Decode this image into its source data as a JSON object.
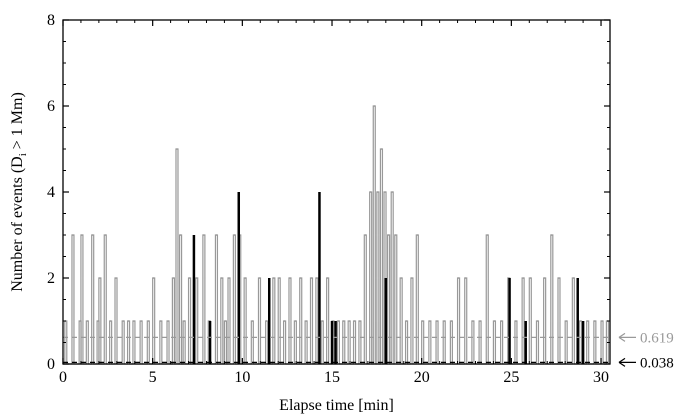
{
  "chart_data": {
    "type": "line",
    "title": "",
    "xlabel": "Elapse time [min]",
    "ylabel_main": "Number of events (D",
    "ylabel_sub": "i",
    "ylabel_tail": " > 1 Mm)",
    "xlim": [
      0,
      30.5
    ],
    "ylim": [
      0,
      8
    ],
    "xticks": [
      0,
      5,
      10,
      15,
      20,
      25,
      30
    ],
    "yticks": [
      0,
      2,
      4,
      6,
      8
    ],
    "grid": false,
    "legend": "none",
    "colors": {
      "gray": "#999999",
      "black": "#000000"
    },
    "series": [
      {
        "style": "gray-line",
        "x": [
          0.1,
          0.5,
          0.9,
          1.0,
          1.3,
          1.6,
          1.9,
          2.0,
          2.3,
          2.6,
          2.9,
          3.3,
          3.6,
          3.9,
          4.3,
          4.7,
          5.0,
          5.4,
          5.8,
          6.1,
          6.3,
          6.5,
          6.7,
          7.0,
          7.4,
          7.8,
          8.1,
          8.5,
          8.8,
          9.0,
          9.2,
          9.5,
          9.8,
          10.1,
          10.5,
          10.9,
          11.3,
          11.7,
          12.0,
          12.3,
          12.6,
          12.9,
          13.2,
          13.5,
          13.8,
          14.1,
          14.4,
          14.7,
          15.0,
          15.3,
          15.6,
          15.9,
          16.2,
          16.5,
          16.8,
          17.1,
          17.3,
          17.5,
          17.7,
          17.9,
          18.1,
          18.3,
          18.5,
          18.8,
          19.1,
          19.4,
          19.7,
          20.0,
          20.4,
          20.8,
          21.2,
          21.6,
          22.0,
          22.4,
          22.8,
          23.2,
          23.6,
          24.0,
          24.4,
          24.8,
          25.2,
          25.6,
          26.0,
          26.4,
          26.8,
          27.2,
          27.6,
          28.0,
          28.4,
          28.8,
          29.2,
          29.6,
          30.0,
          30.3
        ],
        "values": [
          1,
          3,
          1,
          3,
          1,
          3,
          1,
          2,
          3,
          1,
          2,
          1,
          1,
          1,
          1,
          1,
          2,
          1,
          1,
          2,
          5,
          3,
          1,
          2,
          2,
          3,
          1,
          3,
          2,
          1,
          2,
          3,
          3,
          2,
          1,
          2,
          1,
          2,
          2,
          1,
          2,
          1,
          2,
          1,
          2,
          2,
          1,
          2,
          1,
          1,
          1,
          1,
          1,
          1,
          3,
          4,
          6,
          4,
          5,
          4,
          3,
          4,
          3,
          2,
          1,
          2,
          3,
          1,
          1,
          1,
          1,
          1,
          2,
          2,
          1,
          1,
          3,
          1,
          1,
          2,
          1,
          2,
          2,
          1,
          2,
          3,
          2,
          1,
          2,
          1,
          1,
          1,
          1,
          1
        ]
      },
      {
        "style": "black-bars",
        "x": [
          7.3,
          8.2,
          9.8,
          11.5,
          14.3,
          15.0,
          15.2,
          18.0,
          24.9,
          25.8,
          28.7,
          29.0
        ],
        "values": [
          3,
          1,
          4,
          2,
          4,
          1,
          1,
          2,
          2,
          1,
          2,
          1
        ]
      }
    ],
    "reference_lines": [
      {
        "value": 0.619,
        "label": "0.619",
        "color": "#999999"
      },
      {
        "value": 0.038,
        "label": "0.038",
        "color": "#000000"
      }
    ]
  }
}
